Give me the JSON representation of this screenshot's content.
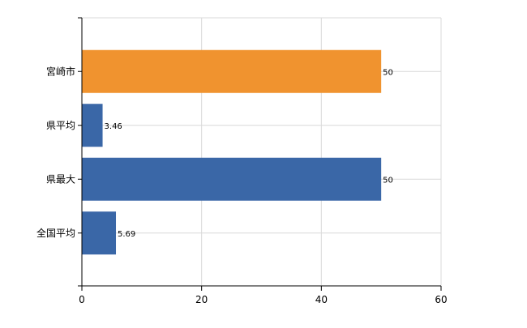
{
  "chart_data": {
    "type": "bar",
    "orientation": "horizontal",
    "categories": [
      "宮崎市",
      "県平均",
      "県最大",
      "全国平均"
    ],
    "values": [
      50,
      3.46,
      50,
      5.69
    ],
    "value_labels": [
      "50",
      "3.46",
      "50",
      "5.69"
    ],
    "bar_colors": [
      "#f0932f",
      "#3a67a7",
      "#3a67a7",
      "#3a67a7"
    ],
    "xlim": [
      0,
      60
    ],
    "xticks": [
      0,
      20,
      40,
      60
    ],
    "xtick_labels": [
      "0",
      "20",
      "40",
      "60"
    ],
    "grid": true,
    "legend": "none",
    "title": "",
    "xlabel": "",
    "ylabel": ""
  },
  "colors": {
    "highlight": "#f0932f",
    "default": "#3a67a7",
    "grid": "#d9d9d9",
    "axis": "#000000"
  }
}
